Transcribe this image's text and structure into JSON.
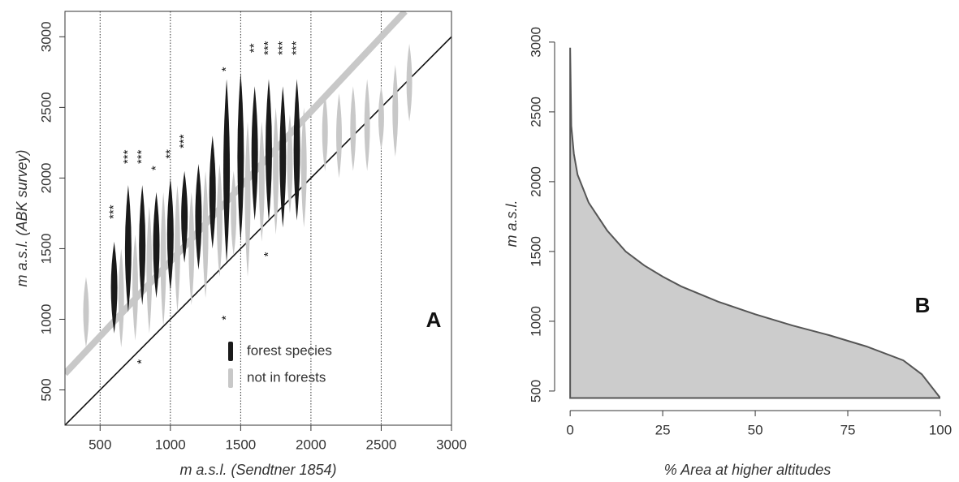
{
  "chart_data": [
    {
      "type": "violin",
      "panel_label": "A",
      "xlabel": "m a.s.l. (Sendtner 1854)",
      "ylabel": "m a.s.l. (ABK survey)",
      "xlim": [
        250,
        3000
      ],
      "ylim": [
        250,
        3180
      ],
      "xticks": [
        500,
        1000,
        1500,
        2000,
        2500,
        3000
      ],
      "yticks": [
        500,
        1000,
        1500,
        2000,
        2500,
        3000
      ],
      "vlines": [
        500,
        1000,
        1500,
        2000,
        2500
      ],
      "reference_line": {
        "x": [
          250,
          3000
        ],
        "y": [
          250,
          3000
        ],
        "color": "#111111"
      },
      "fit_line": {
        "x": [
          250,
          2670
        ],
        "y": [
          615,
          3180
        ],
        "color": "#c8c8c8"
      },
      "series": [
        {
          "name": "forest species",
          "color": "#1a1a1a",
          "x": [
            600,
            700,
            800,
            900,
            1000,
            1100,
            1200,
            1300,
            1400,
            1500,
            1600,
            1700,
            1800,
            1900
          ],
          "ymin": [
            900,
            1050,
            1100,
            1150,
            1200,
            1400,
            1350,
            1500,
            1400,
            1550,
            1700,
            1700,
            1650,
            1700
          ],
          "ymax": [
            1550,
            1950,
            1950,
            1900,
            2000,
            2050,
            2100,
            2300,
            2700,
            2750,
            2650,
            2700,
            2650,
            2700
          ]
        },
        {
          "name": "not in forests",
          "color": "#c8c8c8",
          "x": [
            400,
            650,
            750,
            850,
            950,
            1050,
            1150,
            1250,
            1350,
            1450,
            1550,
            1650,
            1750,
            1850,
            1950,
            2100,
            2200,
            2300,
            2400,
            2500,
            2600,
            2700
          ],
          "ymin": [
            800,
            800,
            850,
            900,
            950,
            1050,
            1100,
            1150,
            1300,
            1450,
            1300,
            1550,
            1600,
            1750,
            1650,
            2050,
            2000,
            2050,
            2050,
            2200,
            2150,
            2400
          ],
          "ymax": [
            1300,
            1500,
            1600,
            1800,
            1900,
            1950,
            1900,
            2050,
            2100,
            2050,
            2400,
            2400,
            2500,
            2450,
            2500,
            2600,
            2600,
            2650,
            2700,
            2650,
            2800,
            2950
          ]
        }
      ],
      "annotations": [
        {
          "text": "***",
          "x": 600,
          "y": 1760
        },
        {
          "text": "***",
          "x": 700,
          "y": 2150
        },
        {
          "text": "***",
          "x": 800,
          "y": 2150
        },
        {
          "text": "*",
          "x": 900,
          "y": 2070
        },
        {
          "text": "**",
          "x": 1000,
          "y": 2170
        },
        {
          "text": "***",
          "x": 1100,
          "y": 2260
        },
        {
          "text": "*",
          "x": 1400,
          "y": 2770
        },
        {
          "text": "**",
          "x": 1600,
          "y": 2920
        },
        {
          "text": "***",
          "x": 1700,
          "y": 2920
        },
        {
          "text": "***",
          "x": 1800,
          "y": 2920
        },
        {
          "text": "***",
          "x": 1900,
          "y": 2920
        },
        {
          "text": "*",
          "x": 800,
          "y": 700
        },
        {
          "text": "*",
          "x": 1400,
          "y": 1010
        },
        {
          "text": "*",
          "x": 1700,
          "y": 1460
        }
      ]
    },
    {
      "type": "area",
      "panel_label": "B",
      "xlabel": "% Area at higher altitudes",
      "ylabel": "m a.s.l.",
      "xlim": [
        -4.2,
        100
      ],
      "ylim": [
        360,
        3040
      ],
      "xticks": [
        0,
        25,
        50,
        75,
        100
      ],
      "yticks": [
        500,
        1000,
        1500,
        2000,
        2500,
        3000
      ],
      "color": "#cccccc",
      "line_color": "#555555",
      "x": [
        0,
        0,
        0.3,
        1,
        2,
        5,
        10,
        15,
        20,
        25,
        30,
        40,
        50,
        60,
        70,
        80,
        90,
        95,
        100
      ],
      "y": [
        450,
        2960,
        2400,
        2200,
        2050,
        1850,
        1650,
        1500,
        1400,
        1320,
        1250,
        1140,
        1050,
        970,
        900,
        820,
        720,
        620,
        450
      ]
    }
  ]
}
